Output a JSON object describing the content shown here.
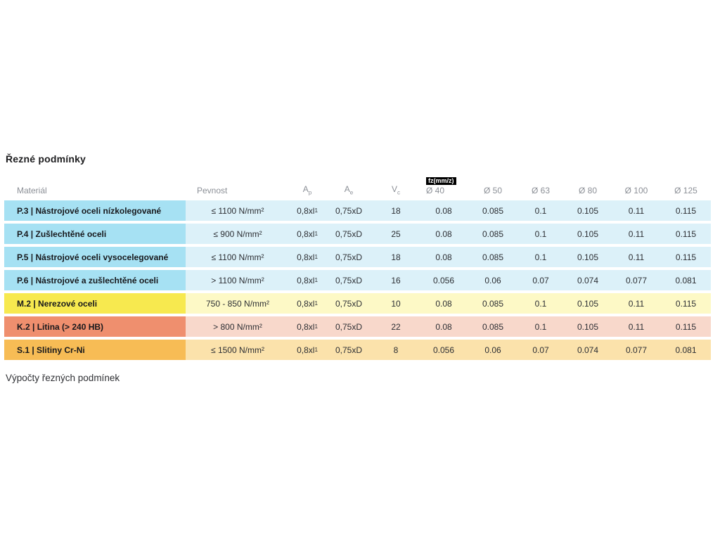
{
  "page": {
    "title": "Řezné podmínky",
    "footer": "Výpočty řezných podmínek"
  },
  "table": {
    "headers": {
      "material": "Materiál",
      "pevnost": "Pevnost",
      "ap": {
        "base": "A",
        "sub": "p"
      },
      "ae": {
        "base": "A",
        "sub": "e"
      },
      "vc": {
        "base": "V",
        "sub": "c"
      },
      "fz_badge": "fz(mm/z)",
      "diameters": [
        "Ø 40",
        "Ø 50",
        "Ø 63",
        "Ø 80",
        "Ø 100",
        "Ø 125"
      ]
    },
    "group_colors": {
      "blue": {
        "strong": "#a6e1f3",
        "light": "#dcf1f9"
      },
      "yellow": {
        "strong": "#f7e94f",
        "light": "#fdf9c6"
      },
      "salmon": {
        "strong": "#ef8f6e",
        "light": "#f8d8cb"
      },
      "orange": {
        "strong": "#f7bc55",
        "light": "#fbe2ab"
      }
    },
    "rows": [
      {
        "group": "blue",
        "material": "P.3 | Nástrojové oceli nízkolegované",
        "pevnost": "≤ 1100 N/mm²",
        "ap_base": "0,8xl",
        "ap_sub": "1",
        "ae": "0,75xD",
        "vc": "18",
        "fz": [
          "0.08",
          "0.085",
          "0.1",
          "0.105",
          "0.11",
          "0.115"
        ]
      },
      {
        "group": "blue",
        "material": "P.4 | Zušlechtěné oceli",
        "pevnost": "≤ 900 N/mm²",
        "ap_base": "0,8xl",
        "ap_sub": "1",
        "ae": "0,75xD",
        "vc": "25",
        "fz": [
          "0.08",
          "0.085",
          "0.1",
          "0.105",
          "0.11",
          "0.115"
        ]
      },
      {
        "group": "blue",
        "material": "P.5 | Nástrojové oceli vysocelegované",
        "pevnost": "≤ 1100 N/mm²",
        "ap_base": "0,8xl",
        "ap_sub": "1",
        "ae": "0,75xD",
        "vc": "18",
        "fz": [
          "0.08",
          "0.085",
          "0.1",
          "0.105",
          "0.11",
          "0.115"
        ]
      },
      {
        "group": "blue",
        "material": "P.6 | Nástrojové a zušlechtěné oceli",
        "pevnost": "> 1100 N/mm²",
        "ap_base": "0,8xl",
        "ap_sub": "1",
        "ae": "0,75xD",
        "vc": "16",
        "fz": [
          "0.056",
          "0.06",
          "0.07",
          "0.074",
          "0.077",
          "0.081"
        ]
      },
      {
        "group": "yellow",
        "material": "M.2 | Nerezové oceli",
        "pevnost": "750 - 850 N/mm²",
        "ap_base": "0,8xl",
        "ap_sub": "1",
        "ae": "0,75xD",
        "vc": "10",
        "fz": [
          "0.08",
          "0.085",
          "0.1",
          "0.105",
          "0.11",
          "0.115"
        ]
      },
      {
        "group": "salmon",
        "material": "K.2 | Litina (> 240 HB)",
        "pevnost": "> 800 N/mm²",
        "ap_base": "0,8xl",
        "ap_sub": "1",
        "ae": "0,75xD",
        "vc": "22",
        "fz": [
          "0.08",
          "0.085",
          "0.1",
          "0.105",
          "0.11",
          "0.115"
        ]
      },
      {
        "group": "orange",
        "material": "S.1 | Slitiny Cr-Ni",
        "pevnost": "≤ 1500 N/mm²",
        "ap_base": "0,8xl",
        "ap_sub": "1",
        "ae": "0,75xD",
        "vc": "8",
        "fz": [
          "0.056",
          "0.06",
          "0.07",
          "0.074",
          "0.077",
          "0.081"
        ]
      }
    ]
  }
}
